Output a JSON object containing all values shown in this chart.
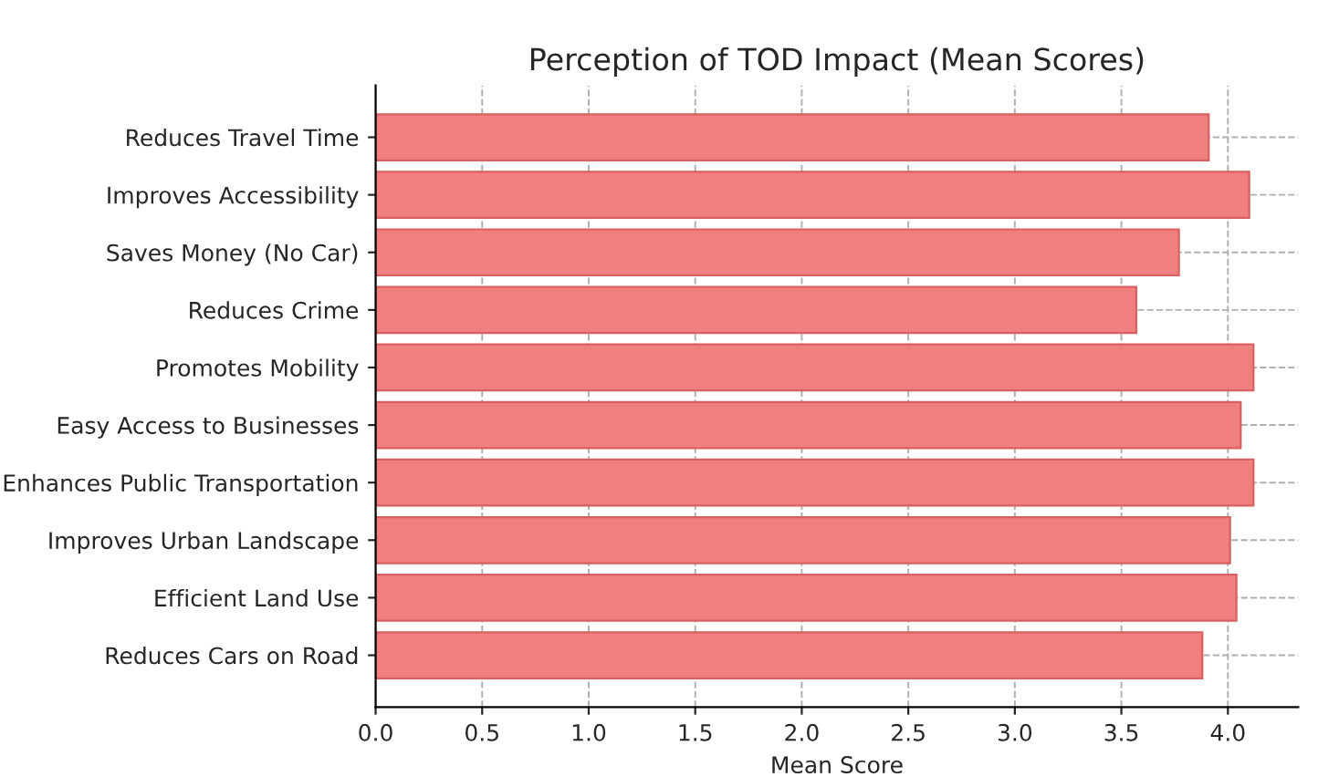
{
  "chart_data": {
    "type": "bar",
    "orientation": "horizontal",
    "title": "Perception of TOD Impact (Mean Scores)",
    "xlabel": "Mean Score",
    "categories": [
      "Reduces Travel Time",
      "Improves Accessibility",
      "Saves Money (No Car)",
      "Reduces Crime",
      "Promotes Mobility",
      "Easy Access to Businesses",
      "Enhances Public Transportation",
      "Improves Urban Landscape",
      "Efficient Land Use",
      "Reduces Cars on Road"
    ],
    "values": [
      3.91,
      4.1,
      3.77,
      3.57,
      4.12,
      4.06,
      4.12,
      4.01,
      4.04,
      3.88
    ],
    "color": "#f08080",
    "xlim": [
      0,
      4.33
    ],
    "xticks": [
      {
        "value": 0,
        "label": "0.0"
      },
      {
        "value": 0.5,
        "label": "0.5"
      },
      {
        "value": 1,
        "label": "1.0"
      },
      {
        "value": 1.5,
        "label": "1.5"
      },
      {
        "value": 2,
        "label": "2.0"
      },
      {
        "value": 2.5,
        "label": "2.5"
      },
      {
        "value": 3,
        "label": "3.0"
      },
      {
        "value": 3.5,
        "label": "3.5"
      },
      {
        "value": 4,
        "label": "4.0"
      }
    ],
    "grid": true
  }
}
